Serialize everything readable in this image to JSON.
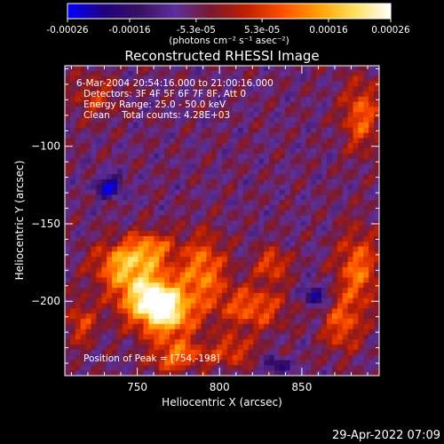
{
  "chart_data": {
    "type": "heatmap",
    "title": "Reconstructed RHESSI Image",
    "xlabel": "Heliocentric X (arcsec)",
    "ylabel": "Heliocentric Y (arcsec)",
    "xlim": [
      706,
      897
    ],
    "ylim": [
      -248,
      -48
    ],
    "x_ticks": [
      750,
      800,
      850
    ],
    "y_ticks": [
      -100,
      -150,
      -200
    ],
    "colorbar": {
      "min": -0.00026,
      "max": 0.00026,
      "tick_values": [
        -0.00026,
        -0.00016,
        -5.3e-05,
        5.3e-05,
        0.00016,
        0.00026
      ],
      "tick_labels": [
        "-0.00026",
        "-0.00016",
        "-5.3e-05",
        "5.3e-05",
        "0.00016",
        "0.00026"
      ],
      "unit_label": "(photons cm⁻² s⁻¹ asec⁻²)",
      "colors": [
        "#0000ff",
        "#200080",
        "#3a1060",
        "#5c2f9a",
        "#7a1830",
        "#c02000",
        "#ff5000",
        "#ffa000",
        "#ffe060",
        "#ffffff"
      ]
    },
    "annotations": [
      "6-Mar-2004 20:54:16.000 to 21:00:16.000",
      "Detectors: 3F 4F 5F 6F 7F 8F, Att 0",
      "Energy Range: 25.0 - 50.0 keV",
      "Clean    Total counts: 4.28E+03"
    ],
    "peak_label": "Position of Peak = [754,-198]",
    "peak": [
      754,
      -198
    ],
    "bright_regions": [
      {
        "x": 757,
        "y": -196,
        "sx": 14,
        "sy": 12,
        "amp": 0.00026
      },
      {
        "x": 768,
        "y": -210,
        "sx": 12,
        "sy": 10,
        "amp": 0.00021
      },
      {
        "x": 740,
        "y": -176,
        "sx": 12,
        "sy": 10,
        "amp": 0.00018
      },
      {
        "x": 758,
        "y": -166,
        "sx": 10,
        "sy": 8,
        "amp": 0.00016
      },
      {
        "x": 790,
        "y": -180,
        "sx": 10,
        "sy": 16,
        "amp": 0.00017
      },
      {
        "x": 775,
        "y": -236,
        "sx": 12,
        "sy": 8,
        "amp": 0.00016
      },
      {
        "x": 820,
        "y": -204,
        "sx": 14,
        "sy": 10,
        "amp": 0.00015
      },
      {
        "x": 832,
        "y": -176,
        "sx": 7,
        "sy": 7,
        "amp": 0.00014
      },
      {
        "x": 808,
        "y": -232,
        "sx": 9,
        "sy": 7,
        "amp": 0.00012
      },
      {
        "x": 884,
        "y": -180,
        "sx": 9,
        "sy": 18,
        "amp": 0.00016
      },
      {
        "x": 874,
        "y": -216,
        "sx": 8,
        "sy": 12,
        "amp": 0.00013
      },
      {
        "x": 716,
        "y": -214,
        "sx": 6,
        "sy": 10,
        "amp": 0.00012
      },
      {
        "x": 886,
        "y": -80,
        "sx": 8,
        "sy": 16,
        "amp": 0.00015
      },
      {
        "x": 724,
        "y": -68,
        "sx": 10,
        "sy": 10,
        "amp": 9e-05
      },
      {
        "x": 766,
        "y": -200,
        "sx": 6,
        "sy": 5,
        "amp": 8e-05
      }
    ],
    "negative_regions": [
      {
        "x": 733,
        "y": -126,
        "sx": 6,
        "sy": 5,
        "amp": -0.00018
      },
      {
        "x": 858,
        "y": -196,
        "sx": 5,
        "sy": 5,
        "amp": -0.00016
      },
      {
        "x": 835,
        "y": -242,
        "sx": 5,
        "sy": 4,
        "amp": -0.00014
      },
      {
        "x": 780,
        "y": -248,
        "sx": 4,
        "sy": 4,
        "amp": -0.00012
      }
    ],
    "background_level": -6e-05
  },
  "footer": {
    "timestamp": "29-Apr-2022 07:09"
  }
}
